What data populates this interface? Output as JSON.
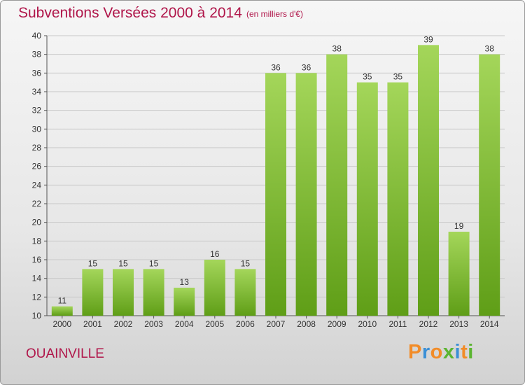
{
  "header": {
    "title": "Subventions Versées 2000 à 2014",
    "unit": "(en milliers d'€)"
  },
  "footer": {
    "commune": "OUAINVILLE",
    "logo": "Proxiti"
  },
  "colors": {
    "accent": "#b0164a",
    "bar_top": "#a4d65a",
    "bar_bottom": "#5f9e17",
    "grid": "#c8c8c8",
    "logo_letters": [
      "#f28c28",
      "#3a8fd6",
      "#f28c28",
      "#5bb531",
      "#3a8fd6",
      "#f28c28",
      "#5bb531"
    ]
  },
  "chart_data": {
    "type": "bar",
    "title": "Subventions Versées 2000 à 2014",
    "xlabel": "",
    "ylabel": "",
    "categories": [
      "2000",
      "2001",
      "2002",
      "2003",
      "2004",
      "2005",
      "2006",
      "2007",
      "2008",
      "2009",
      "2010",
      "2011",
      "2012",
      "2013",
      "2014"
    ],
    "values": [
      11,
      15,
      15,
      15,
      13,
      16,
      15,
      36,
      36,
      38,
      35,
      35,
      39,
      19,
      38
    ],
    "ylim": [
      10,
      40
    ],
    "yticks": [
      10,
      12,
      14,
      16,
      18,
      20,
      22,
      24,
      26,
      28,
      30,
      32,
      34,
      36,
      38,
      40
    ],
    "grid": true,
    "data_labels": true
  }
}
